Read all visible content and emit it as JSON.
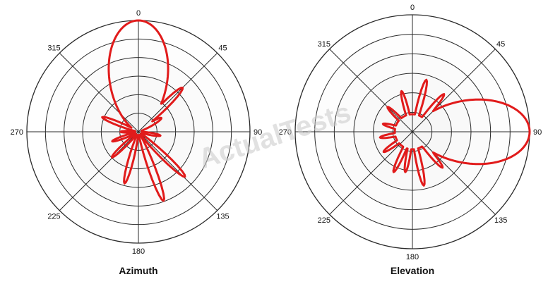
{
  "watermark": "ActualTests",
  "chart_data": [
    {
      "type": "polar-line",
      "title": "Azimuth",
      "angle_ticks": [
        "0",
        "45",
        "90",
        "135",
        "180",
        "225",
        "270",
        "315"
      ],
      "rings": 6,
      "r_range": [
        0,
        1
      ],
      "grid": true,
      "series_color": "#e11b1b",
      "grid_fill": "#f3f3f3",
      "series": [
        {
          "lobes": [
            {
              "center_deg": 0,
              "peak": 1.0,
              "width_deg": 52
            },
            {
              "center_deg": 59,
              "peak": 0.24,
              "width_deg": 12
            },
            {
              "center_deg": 45,
              "peak": 0.56,
              "width_deg": 10
            },
            {
              "center_deg": 134,
              "peak": 0.58,
              "width_deg": 9
            },
            {
              "center_deg": 160,
              "peak": 0.66,
              "width_deg": 9
            },
            {
              "center_deg": 195,
              "peak": 0.48,
              "width_deg": 9
            },
            {
              "center_deg": 226,
              "peak": 0.33,
              "width_deg": 9
            },
            {
              "center_deg": 292,
              "peak": 0.35,
              "width_deg": 9
            },
            {
              "center_deg": 326,
              "peak": 0.36,
              "width_deg": 9
            },
            {
              "center_deg": 347,
              "peak": 0.42,
              "width_deg": 10
            },
            {
              "center_deg": 250,
              "peak": 0.25,
              "width_deg": 9
            },
            {
              "center_deg": 270,
              "peak": 0.16,
              "width_deg": 9
            },
            {
              "center_deg": 100,
              "peak": 0.2,
              "width_deg": 10
            }
          ],
          "floor": 0.03
        }
      ]
    },
    {
      "type": "polar-line",
      "title": "Elevation",
      "angle_ticks": [
        "0",
        "45",
        "90",
        "135",
        "180",
        "225",
        "270",
        "315"
      ],
      "rings": 6,
      "r_range": [
        0,
        1
      ],
      "grid": true,
      "series_color": "#e11b1b",
      "grid_fill": "#f3f3f3",
      "series": [
        {
          "lobes": [
            {
              "center_deg": 90,
              "peak": 1.0,
              "width_deg": 54
            },
            {
              "center_deg": 15,
              "peak": 0.46,
              "width_deg": 9
            },
            {
              "center_deg": 40,
              "peak": 0.42,
              "width_deg": 9
            },
            {
              "center_deg": 140,
              "peak": 0.4,
              "width_deg": 9
            },
            {
              "center_deg": 168,
              "peak": 0.47,
              "width_deg": 9
            },
            {
              "center_deg": 205,
              "peak": 0.38,
              "width_deg": 9
            },
            {
              "center_deg": 235,
              "peak": 0.3,
              "width_deg": 10
            },
            {
              "center_deg": 260,
              "peak": 0.28,
              "width_deg": 10
            },
            {
              "center_deg": 285,
              "peak": 0.26,
              "width_deg": 10
            },
            {
              "center_deg": 315,
              "peak": 0.3,
              "width_deg": 10
            },
            {
              "center_deg": 345,
              "peak": 0.36,
              "width_deg": 9
            },
            {
              "center_deg": 190,
              "peak": 0.35,
              "width_deg": 9
            }
          ],
          "floor": 0.15
        }
      ]
    }
  ]
}
